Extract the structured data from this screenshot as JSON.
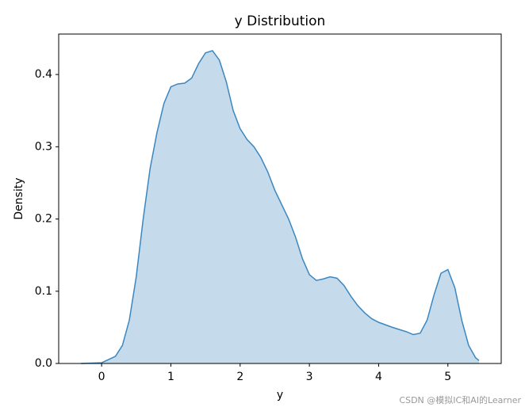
{
  "chart_data": {
    "type": "kde",
    "title": "y Distribution",
    "xlabel": "y",
    "ylabel": "Density",
    "x": [
      -0.3,
      0,
      0.2,
      0.3,
      0.4,
      0.5,
      0.6,
      0.7,
      0.8,
      0.9,
      1.0,
      1.1,
      1.2,
      1.3,
      1.4,
      1.5,
      1.6,
      1.7,
      1.8,
      1.9,
      2.0,
      2.1,
      2.2,
      2.3,
      2.4,
      2.5,
      2.6,
      2.7,
      2.8,
      2.9,
      3.0,
      3.1,
      3.2,
      3.3,
      3.4,
      3.5,
      3.6,
      3.7,
      3.8,
      3.9,
      4.0,
      4.2,
      4.4,
      4.5,
      4.6,
      4.7,
      4.8,
      4.9,
      5.0,
      5.1,
      5.2,
      5.3,
      5.4,
      5.45
    ],
    "values": [
      0,
      0.001,
      0.01,
      0.025,
      0.06,
      0.12,
      0.2,
      0.27,
      0.32,
      0.36,
      0.383,
      0.387,
      0.388,
      0.395,
      0.415,
      0.43,
      0.433,
      0.42,
      0.39,
      0.35,
      0.325,
      0.31,
      0.3,
      0.285,
      0.265,
      0.24,
      0.22,
      0.2,
      0.175,
      0.145,
      0.123,
      0.115,
      0.117,
      0.12,
      0.118,
      0.108,
      0.093,
      0.08,
      0.07,
      0.062,
      0.057,
      0.05,
      0.044,
      0.04,
      0.042,
      0.06,
      0.095,
      0.125,
      0.13,
      0.105,
      0.06,
      0.025,
      0.008,
      0.004
    ],
    "color": "#3a87c0",
    "fill_color": "#c5dbec",
    "xlim": [
      -0.62,
      5.77
    ],
    "xticks": [
      0,
      1,
      2,
      3,
      4,
      5
    ],
    "ylim": [
      0,
      0.456
    ],
    "yticks": [
      {
        "value": 0,
        "label": "0.0"
      },
      0.1,
      0.2,
      0.3,
      0.4
    ],
    "watermark": "CSDN @模拟IC和AI的Learner"
  }
}
